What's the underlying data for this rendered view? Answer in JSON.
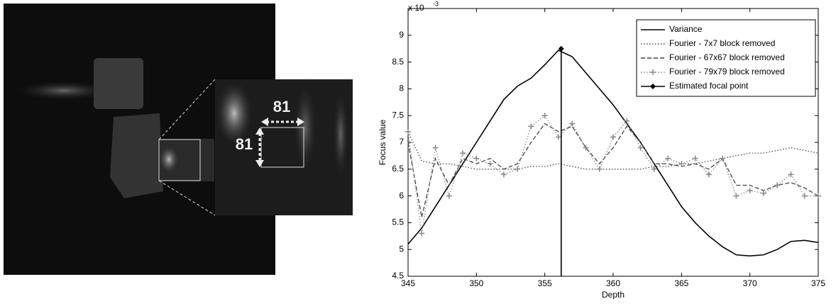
{
  "image_annotations": [
    "81",
    "81"
  ],
  "chart_data": {
    "type": "line",
    "y_multiplier": {
      "base": "x 10",
      "exponent": "-3"
    },
    "xlabel": "Depth",
    "ylabel": "Focus value",
    "x": [
      345,
      346,
      347,
      348,
      349,
      350,
      351,
      352,
      353,
      354,
      355,
      356,
      357,
      358,
      359,
      360,
      361,
      362,
      363,
      364,
      365,
      366,
      367,
      368,
      369,
      370,
      371,
      372,
      373,
      374,
      375
    ],
    "series": [
      {
        "name": "Variance",
        "color": "#000000",
        "style": "solid",
        "marker": null,
        "values": [
          5.1,
          5.4,
          5.8,
          6.2,
          6.6,
          7.0,
          7.4,
          7.8,
          8.05,
          8.2,
          8.45,
          8.72,
          8.6,
          8.3,
          8.0,
          7.7,
          7.35,
          7.0,
          6.6,
          6.2,
          5.8,
          5.5,
          5.25,
          5.05,
          4.9,
          4.88,
          4.9,
          5.0,
          5.15,
          5.17,
          5.13
        ]
      },
      {
        "name": "Fourier - 7x7 block removed",
        "color": "#444444",
        "style": "dotted",
        "marker": null,
        "values": [
          7.2,
          6.65,
          6.6,
          6.6,
          6.55,
          6.5,
          6.5,
          6.5,
          6.5,
          6.55,
          6.55,
          6.6,
          6.55,
          6.5,
          6.5,
          6.5,
          6.5,
          6.5,
          6.55,
          6.55,
          6.6,
          6.6,
          6.65,
          6.7,
          6.75,
          6.8,
          6.8,
          6.85,
          6.9,
          6.85,
          6.8
        ]
      },
      {
        "name": "Fourier - 67x67 block removed",
        "color": "#444444",
        "style": "dashed",
        "marker": null,
        "values": [
          7.0,
          5.6,
          6.7,
          6.2,
          6.7,
          6.6,
          6.7,
          6.5,
          6.6,
          7.0,
          7.35,
          7.2,
          7.3,
          6.9,
          6.6,
          6.9,
          7.3,
          7.0,
          6.6,
          6.6,
          6.55,
          6.6,
          6.5,
          6.7,
          6.2,
          6.2,
          6.1,
          6.2,
          6.25,
          6.15,
          6.0
        ]
      },
      {
        "name": "Fourier - 79x79 block removed",
        "color": "#888888",
        "style": "dotted",
        "marker": "+",
        "values": [
          7.2,
          5.3,
          6.9,
          6.0,
          6.8,
          6.7,
          6.6,
          6.4,
          6.5,
          7.3,
          7.5,
          7.1,
          7.35,
          6.9,
          6.5,
          7.1,
          7.4,
          6.9,
          6.5,
          6.7,
          6.6,
          6.7,
          6.4,
          6.7,
          6.0,
          6.1,
          6.05,
          6.2,
          6.4,
          6.0,
          6.0
        ]
      },
      {
        "name": "Estimated focal point",
        "color": "#000000",
        "style": "solid",
        "marker": "diamond",
        "x": [
          356.2,
          356.2
        ],
        "values": [
          4.5,
          8.75
        ]
      }
    ],
    "xlim": [
      345,
      375
    ],
    "xticks": [
      345,
      350,
      355,
      360,
      365,
      370,
      375
    ],
    "ylim": [
      4.5,
      9.5
    ],
    "yticks": [
      4.5,
      5,
      5.5,
      6,
      6.5,
      7,
      7.5,
      8,
      8.5,
      9
    ],
    "legend": "upper-right"
  }
}
